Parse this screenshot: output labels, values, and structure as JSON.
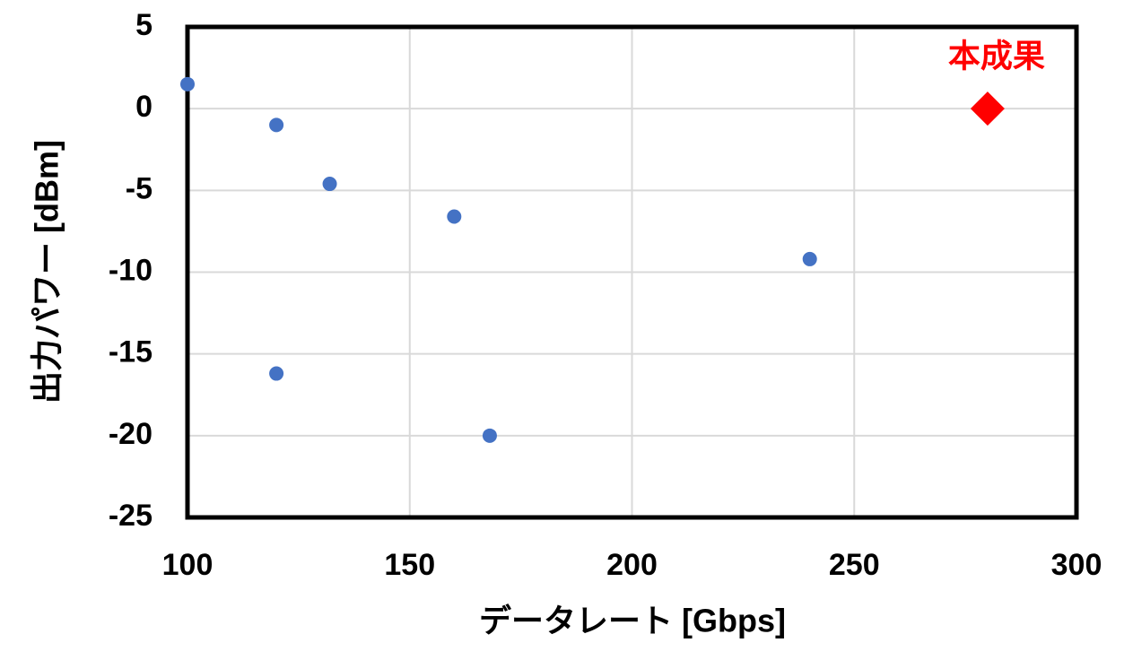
{
  "chart_data": {
    "type": "scatter",
    "x_label": "データレート [Gbps]",
    "y_label": "出力パワー [dBm]",
    "xlim": [
      100,
      300
    ],
    "xticks": [
      100,
      150,
      200,
      250,
      300
    ],
    "ylim": [
      -25,
      5
    ],
    "yticks": [
      -25,
      -20,
      -15,
      -10,
      -5,
      0,
      5
    ],
    "grid": true,
    "series": [
      {
        "color": "#4472c4",
        "marker": "circle",
        "x": [
          100,
          120,
          132,
          160,
          240,
          120,
          168
        ],
        "values": [
          1.5,
          -1,
          -4.6,
          -6.6,
          -9.2,
          -16.2,
          -20
        ]
      },
      {
        "name": "本成果",
        "color": "#ff0000",
        "marker": "diamond",
        "x": [
          280
        ],
        "values": [
          0
        ]
      }
    ]
  }
}
